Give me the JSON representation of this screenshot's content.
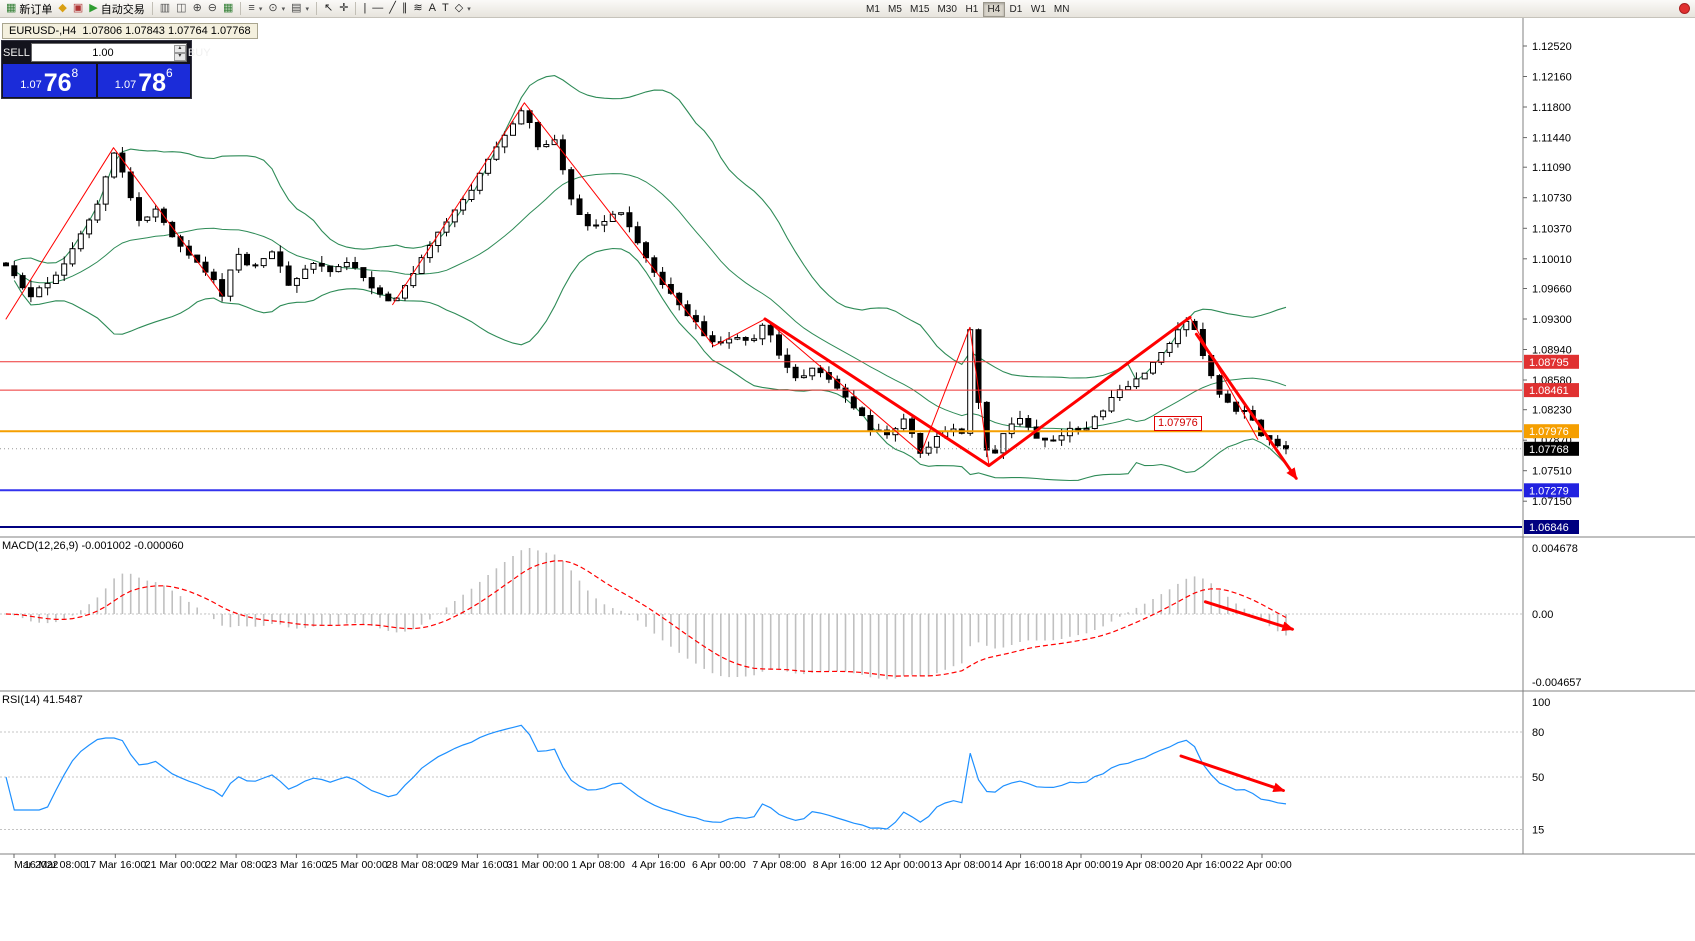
{
  "toolbar": {
    "groups": [
      {
        "items": [
          {
            "id": "new-order",
            "glyph": "▦",
            "color": "#2f7d32",
            "label": "新订单"
          },
          {
            "id": "market",
            "glyph": "◆",
            "color": "#d9a014"
          },
          {
            "id": "profiles",
            "glyph": "▣",
            "color": "#b03434"
          },
          {
            "id": "autotrading",
            "glyph": "▶",
            "color": "#2f9d32",
            "label": "自动交易"
          }
        ]
      },
      {
        "items": [
          {
            "id": "chart-bars",
            "glyph": "▥",
            "color": "#555555"
          },
          {
            "id": "chart-candles",
            "glyph": "◫",
            "color": "#555555"
          },
          {
            "id": "zoom-in",
            "glyph": "⊕",
            "color": "#444444"
          },
          {
            "id": "zoom-out",
            "glyph": "⊖",
            "color": "#444444"
          },
          {
            "id": "tile-windows",
            "glyph": "▦",
            "color": "#2f7d32"
          }
        ]
      },
      {
        "items": [
          {
            "id": "indicator-list",
            "glyph": "≡",
            "color": "#444444",
            "dropdown": true
          },
          {
            "id": "periods",
            "glyph": "⊙",
            "color": "#444444",
            "dropdown": true
          },
          {
            "id": "templates",
            "glyph": "▤",
            "color": "#444444",
            "dropdown": true
          }
        ]
      },
      {
        "items": [
          {
            "id": "cursor",
            "glyph": "↖",
            "color": "#222222"
          },
          {
            "id": "crosshair",
            "glyph": "✛",
            "color": "#222222"
          }
        ]
      },
      {
        "items": [
          {
            "id": "vline",
            "glyph": "|",
            "color": "#222222"
          },
          {
            "id": "hline",
            "glyph": "—",
            "color": "#222222"
          },
          {
            "id": "trendline",
            "glyph": "╱",
            "color": "#222222"
          },
          {
            "id": "channel",
            "glyph": "∥",
            "color": "#222222"
          },
          {
            "id": "fibo",
            "glyph": "≋",
            "color": "#222222"
          },
          {
            "id": "text",
            "glyph": "A",
            "color": "#222222"
          },
          {
            "id": "label",
            "glyph": "T",
            "color": "#222222"
          },
          {
            "id": "shapes",
            "glyph": "◇",
            "color": "#222222",
            "dropdown": true
          }
        ]
      }
    ],
    "timeframes": [
      {
        "label": "M1"
      },
      {
        "label": "M5"
      },
      {
        "label": "M15"
      },
      {
        "label": "M30"
      },
      {
        "label": "H1"
      },
      {
        "label": "H4",
        "active": true
      },
      {
        "label": "D1"
      },
      {
        "label": "W1"
      },
      {
        "label": "MN"
      }
    ]
  },
  "chart_header": {
    "title": "EURUSD-,H4  1.07806 1.07843 1.07764 1.07768"
  },
  "trade_panel": {
    "sell_label": "SELL",
    "buy_label": "BUY",
    "volume": "1.00",
    "price_bg": "#1b2cd9",
    "sell_price": {
      "prefix": "1.07",
      "big": "76",
      "pip": "8"
    },
    "buy_price": {
      "prefix": "1.07",
      "big": "78",
      "pip": "6"
    }
  },
  "price_axis": {
    "ticks": [
      "1.12520",
      "1.12160",
      "1.11800",
      "1.11440",
      "1.11090",
      "1.10730",
      "1.10370",
      "1.10010",
      "1.09660",
      "1.09300",
      "1.08940",
      "1.08580",
      "1.08230",
      "1.07870",
      "1.07510",
      "1.07150"
    ],
    "markers": [
      {
        "value": "1.08795",
        "bg": "#e03131",
        "fg": "#ffffff"
      },
      {
        "value": "1.08461",
        "bg": "#e03131",
        "fg": "#ffffff"
      },
      {
        "value": "1.07976",
        "bg": "#f59f00",
        "fg": "#ffffff"
      },
      {
        "value": "1.07768",
        "bg": "#000000",
        "fg": "#ffffff"
      },
      {
        "value": "1.07279",
        "bg": "#2222e0",
        "fg": "#ffffff"
      },
      {
        "value": "1.06846",
        "bg": "#000080",
        "fg": "#ffffff"
      }
    ]
  },
  "time_axis": {
    "labels": [
      "Mar 2022",
      "16 Mar 08:00",
      "17 Mar 16:00",
      "21 Mar 00:00",
      "22 Mar 08:00",
      "23 Mar 16:00",
      "25 Mar 00:00",
      "28 Mar 08:00",
      "29 Mar 16:00",
      "31 Mar 00:00",
      "1 Apr 08:00",
      "4 Apr 16:00",
      "6 Apr 00:00",
      "7 Apr 08:00",
      "8 Apr 16:00",
      "12 Apr 00:00",
      "13 Apr 08:00",
      "14 Apr 16:00",
      "18 Apr 00:00",
      "19 Apr 08:00",
      "20 Apr 16:00",
      "22 Apr 00:00"
    ]
  },
  "macd": {
    "label": "MACD(12,26,9) -0.001002 -0.000060",
    "axis": [
      "0.004678",
      "0.00",
      "-0.004657"
    ]
  },
  "rsi": {
    "label": "RSI(14) 41.5487",
    "axis": [
      "100",
      "80",
      "50",
      "15"
    ]
  },
  "colors": {
    "bull": "#ffffff",
    "bear": "#000000",
    "bands": "#2e8b57",
    "signal": "#ff0000",
    "histogram": "#c0c0c0",
    "rsi": "#1e90ff"
  },
  "chart_data": {
    "type": "candlestick",
    "symbol": "EURUSD-",
    "period": "H4",
    "open": "1.07806",
    "high": "1.07843",
    "low": "1.07764",
    "close": "1.07768",
    "candle_count": 155,
    "visible_price_range": [
      1.0674,
      1.1286
    ],
    "indicators": [
      {
        "name": "Bollinger Bands",
        "period": 20,
        "deviation": 2
      },
      {
        "name": "MACD",
        "fast": 12,
        "slow": 26,
        "signal": 9,
        "values": [
          -0.001002,
          -6e-05
        ]
      },
      {
        "name": "RSI",
        "period": 14,
        "value": 41.5487
      }
    ],
    "price_path": [
      [
        0.0,
        1.099
      ],
      [
        0.02,
        1.0955
      ],
      [
        0.042,
        1.0988
      ],
      [
        0.06,
        1.1035
      ],
      [
        0.072,
        1.107
      ],
      [
        0.084,
        1.113
      ],
      [
        0.095,
        1.1085
      ],
      [
        0.105,
        1.104
      ],
      [
        0.115,
        1.1062
      ],
      [
        0.13,
        1.1028
      ],
      [
        0.148,
        1.1
      ],
      [
        0.16,
        1.098
      ],
      [
        0.169,
        1.0958
      ],
      [
        0.18,
        1.1008
      ],
      [
        0.193,
        1.099
      ],
      [
        0.207,
        1.1012
      ],
      [
        0.222,
        1.0968
      ],
      [
        0.238,
        1.0998
      ],
      [
        0.253,
        1.0985
      ],
      [
        0.268,
        1.1
      ],
      [
        0.284,
        1.0972
      ],
      [
        0.302,
        1.0947
      ],
      [
        0.315,
        1.0978
      ],
      [
        0.33,
        1.1012
      ],
      [
        0.347,
        1.1052
      ],
      [
        0.362,
        1.1078
      ],
      [
        0.378,
        1.1122
      ],
      [
        0.392,
        1.1152
      ],
      [
        0.405,
        1.1183
      ],
      [
        0.417,
        1.1128
      ],
      [
        0.428,
        1.1142
      ],
      [
        0.443,
        1.1062
      ],
      [
        0.456,
        1.1036
      ],
      [
        0.47,
        1.1048
      ],
      [
        0.482,
        1.1056
      ],
      [
        0.495,
        1.1012
      ],
      [
        0.51,
        1.0975
      ],
      [
        0.525,
        1.095
      ],
      [
        0.54,
        1.0922
      ],
      [
        0.555,
        1.0895
      ],
      [
        0.568,
        1.0912
      ],
      [
        0.582,
        1.0902
      ],
      [
        0.593,
        1.093
      ],
      [
        0.605,
        1.088
      ],
      [
        0.618,
        1.0862
      ],
      [
        0.632,
        1.0872
      ],
      [
        0.648,
        1.0852
      ],
      [
        0.662,
        1.0828
      ],
      [
        0.676,
        1.08
      ],
      [
        0.69,
        1.0792
      ],
      [
        0.703,
        1.0812
      ],
      [
        0.715,
        1.0772
      ],
      [
        0.728,
        1.079
      ],
      [
        0.74,
        1.0802
      ],
      [
        0.748,
        1.0795
      ],
      [
        0.753,
        1.0918
      ],
      [
        0.76,
        1.083
      ],
      [
        0.768,
        1.0758
      ],
      [
        0.78,
        1.0798
      ],
      [
        0.793,
        1.0815
      ],
      [
        0.806,
        1.079
      ],
      [
        0.818,
        1.0786
      ],
      [
        0.83,
        1.0802
      ],
      [
        0.842,
        1.0796
      ],
      [
        0.854,
        1.0818
      ],
      [
        0.866,
        1.084
      ],
      [
        0.878,
        1.0852
      ],
      [
        0.89,
        1.0868
      ],
      [
        0.902,
        1.089
      ],
      [
        0.914,
        1.0912
      ],
      [
        0.925,
        1.0932
      ],
      [
        0.936,
        1.0882
      ],
      [
        0.947,
        1.0846
      ],
      [
        0.958,
        1.0826
      ],
      [
        0.969,
        1.0818
      ],
      [
        0.98,
        1.0796
      ],
      [
        0.99,
        1.0783
      ],
      [
        1.0,
        1.0777
      ]
    ]
  },
  "annotations": {
    "color": "#ff0000",
    "horizontal_lines": [
      {
        "price": 1.08795,
        "color": "#ee3333",
        "width": 1
      },
      {
        "price": 1.08461,
        "color": "#ee3333",
        "width": 1
      },
      {
        "price": 1.07976,
        "color": "#f59f00",
        "width": 2
      },
      {
        "price": 1.07279,
        "color": "#3333ee",
        "width": 2
      },
      {
        "price": 1.06846,
        "color": "#000080",
        "width": 2
      }
    ],
    "bid_line": {
      "price": 1.07768,
      "color": "#999999"
    },
    "zigzag_lines": [
      {
        "points": [
          [
            0.0,
            1.093
          ],
          [
            0.084,
            1.1132
          ],
          [
            0.169,
            1.0958
          ]
        ],
        "width": 1
      },
      {
        "points": [
          [
            0.302,
            1.0947
          ],
          [
            0.405,
            1.1185
          ],
          [
            0.553,
            1.0898
          ],
          [
            0.593,
            1.093
          ],
          [
            0.715,
            1.0772
          ],
          [
            0.753,
            1.092
          ],
          [
            0.768,
            1.0757
          ]
        ],
        "width": 1
      },
      {
        "points": [
          [
            0.925,
            1.0932
          ],
          [
            0.978,
            1.0788
          ]
        ],
        "width": 1
      },
      {
        "points": [
          [
            0.593,
            1.093
          ],
          [
            0.768,
            1.0757
          ],
          [
            0.925,
            1.0932
          ]
        ],
        "width": 3
      }
    ],
    "arrows": [
      {
        "panel": "main",
        "points": [
          [
            0.93,
            1.0912
          ],
          [
            1.008,
            1.0742
          ]
        ],
        "width": 3
      },
      {
        "panel": "macd",
        "points": [
          [
            0.937,
            0.42
          ],
          [
            1.005,
            0.6
          ]
        ],
        "width": 3
      },
      {
        "panel": "rsi",
        "points": [
          [
            0.918,
            64
          ],
          [
            0.998,
            41
          ]
        ],
        "width": 3
      }
    ],
    "price_label": {
      "text": "1.07976",
      "t": 0.897,
      "price": 1.0806
    }
  }
}
